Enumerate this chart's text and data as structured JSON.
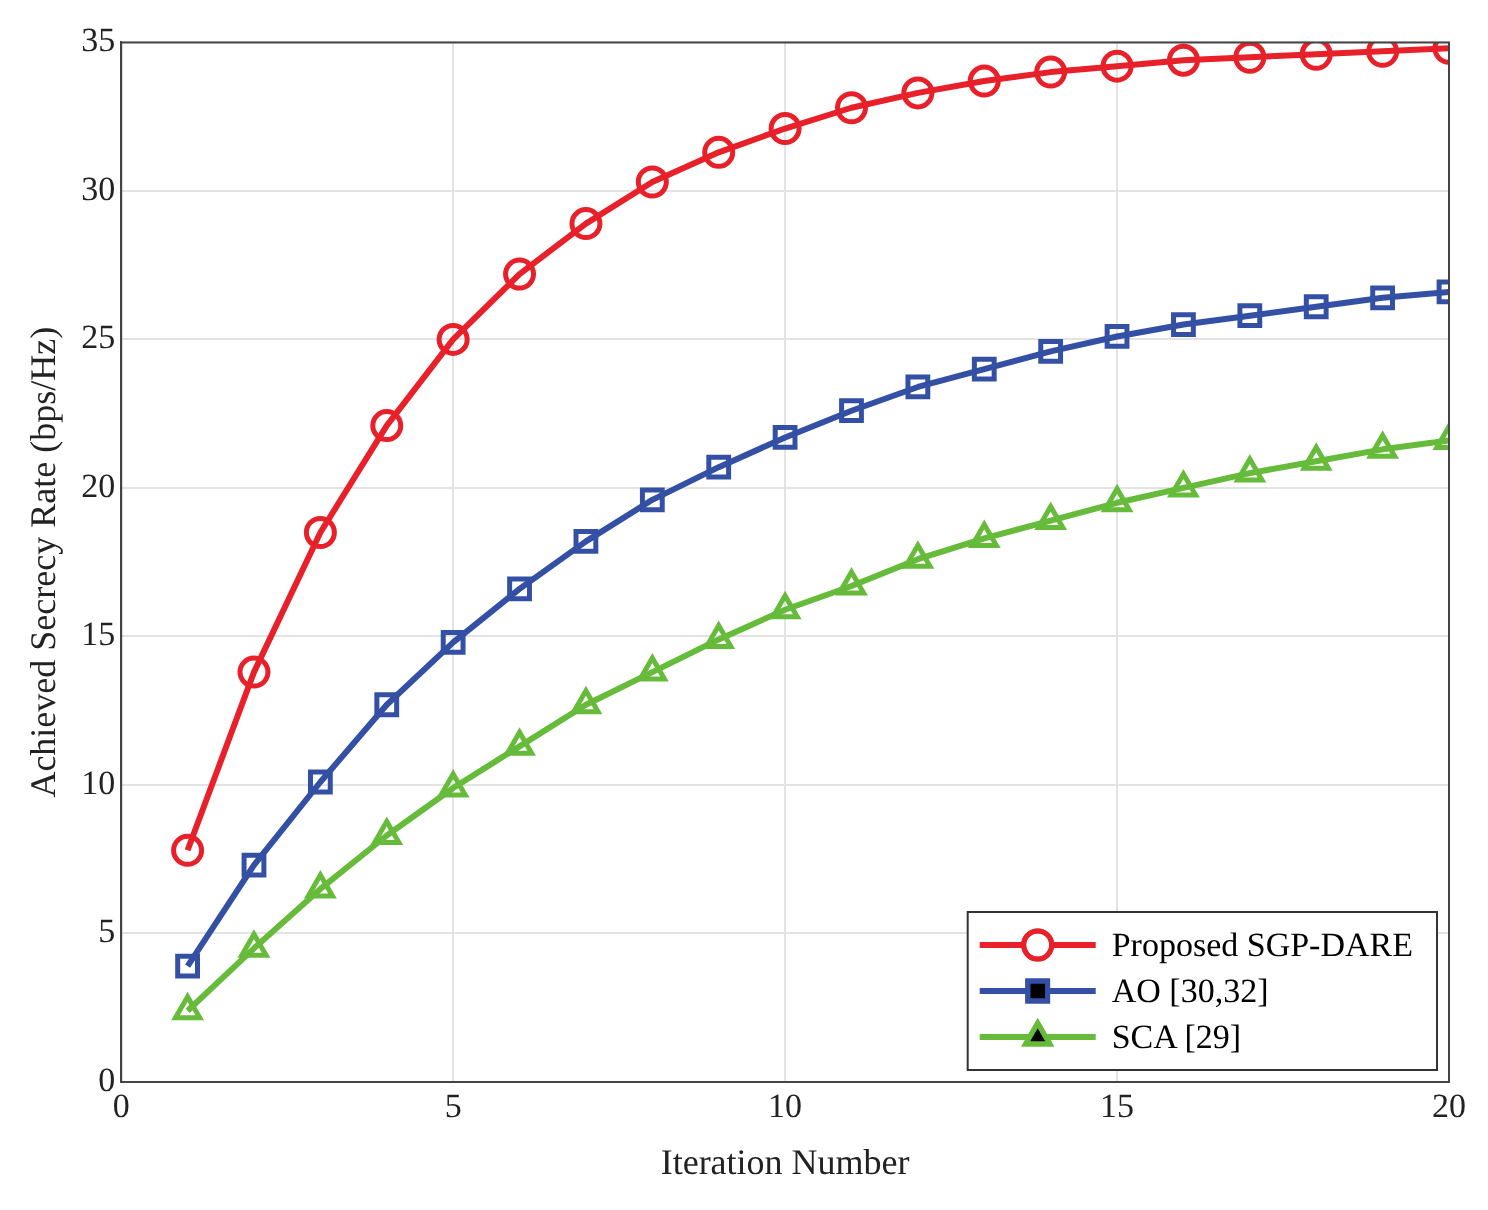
{
  "chart_data": {
    "type": "line",
    "xlabel": "Iteration Number",
    "ylabel": "Achieved Secrecy Rate (bps/Hz)",
    "x": [
      1,
      2,
      3,
      4,
      5,
      6,
      7,
      8,
      9,
      10,
      11,
      12,
      13,
      14,
      15,
      16,
      17,
      18,
      19,
      20
    ],
    "series": [
      {
        "name": "Proposed SGP-DARE",
        "color": "#e8202a",
        "marker": "circle",
        "values": [
          7.8,
          13.8,
          18.5,
          22.1,
          25.0,
          27.2,
          28.9,
          30.3,
          31.3,
          32.1,
          32.8,
          33.3,
          33.7,
          34.0,
          34.2,
          34.4,
          34.5,
          34.6,
          34.7,
          34.8
        ]
      },
      {
        "name": "AO [30,32]",
        "color": "#3450a5",
        "marker": "square",
        "values": [
          3.9,
          7.3,
          10.1,
          12.7,
          14.8,
          16.6,
          18.2,
          19.6,
          20.7,
          21.7,
          22.6,
          23.4,
          24.0,
          24.6,
          25.1,
          25.5,
          25.8,
          26.1,
          26.4,
          26.6
        ]
      },
      {
        "name": "SCA [29]",
        "color": "#66bb3a",
        "marker": "triangle",
        "values": [
          2.4,
          4.5,
          6.5,
          8.3,
          9.9,
          11.3,
          12.7,
          13.8,
          14.9,
          15.9,
          16.7,
          17.6,
          18.3,
          18.9,
          19.5,
          20.0,
          20.5,
          20.9,
          21.3,
          21.6
        ]
      }
    ],
    "xlim": [
      0,
      20
    ],
    "xticks": [
      0,
      5,
      10,
      15,
      20
    ],
    "ylim": [
      0,
      35
    ],
    "yticks": [
      0,
      5,
      10,
      15,
      20,
      25,
      30,
      35
    ],
    "grid": true,
    "legend": "bottom right",
    "line_style": "solid"
  }
}
